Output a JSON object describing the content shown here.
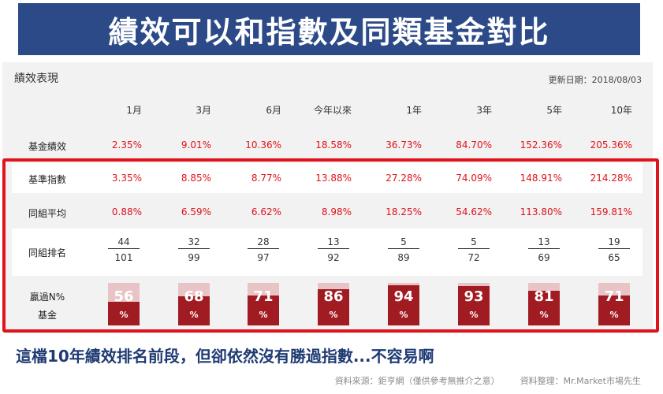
{
  "banner": {
    "title": "績效可以和指數及同類基金對比"
  },
  "panel": {
    "title": "績效表現",
    "date_label": "更新日期：",
    "date_value": "2018/08/03"
  },
  "columns": [
    "1月",
    "3月",
    "6月",
    "今年以來",
    "1年",
    "3年",
    "5年",
    "10年"
  ],
  "rows": {
    "fund": {
      "label": "基金績效",
      "values": [
        "2.35%",
        "9.01%",
        "10.36%",
        "18.58%",
        "36.73%",
        "84.70%",
        "152.36%",
        "205.36%"
      ]
    },
    "benchmark": {
      "label": "基準指數",
      "values": [
        "3.35%",
        "8.85%",
        "8.77%",
        "13.88%",
        "27.28%",
        "74.09%",
        "148.91%",
        "214.28%"
      ]
    },
    "peer_avg": {
      "label": "同組平均",
      "values": [
        "0.88%",
        "6.59%",
        "6.62%",
        "8.98%",
        "18.25%",
        "54.62%",
        "113.80%",
        "159.81%"
      ]
    },
    "peer_rank": {
      "label": "同組排名",
      "ranks": [
        {
          "rank": "44",
          "total": "101"
        },
        {
          "rank": "32",
          "total": "99"
        },
        {
          "rank": "28",
          "total": "97"
        },
        {
          "rank": "13",
          "total": "92"
        },
        {
          "rank": "5",
          "total": "89"
        },
        {
          "rank": "5",
          "total": "72"
        },
        {
          "rank": "13",
          "total": "69"
        },
        {
          "rank": "19",
          "total": "65"
        }
      ]
    },
    "beat": {
      "label_line1": "贏過N%",
      "label_line2": "基金",
      "unit": "%",
      "values": [
        56,
        68,
        71,
        86,
        94,
        93,
        81,
        71
      ],
      "value_text": [
        "56",
        "68",
        "71",
        "86",
        "94",
        "93",
        "81",
        "71"
      ]
    }
  },
  "colors": {
    "banner": "#2b4a87",
    "value_red": "#e0121b",
    "bar": "#a01c22",
    "bar_bg": "#e8c4c6",
    "caption": "#1f3b73"
  },
  "caption": "這檔10年績效排名前段，但卻依然沒有勝過指數...不容易啊",
  "source": {
    "left": "資料來源：鉅亨網（僅供參考無推介之意）",
    "right": "資料整理：Mr.Market市場先生"
  }
}
